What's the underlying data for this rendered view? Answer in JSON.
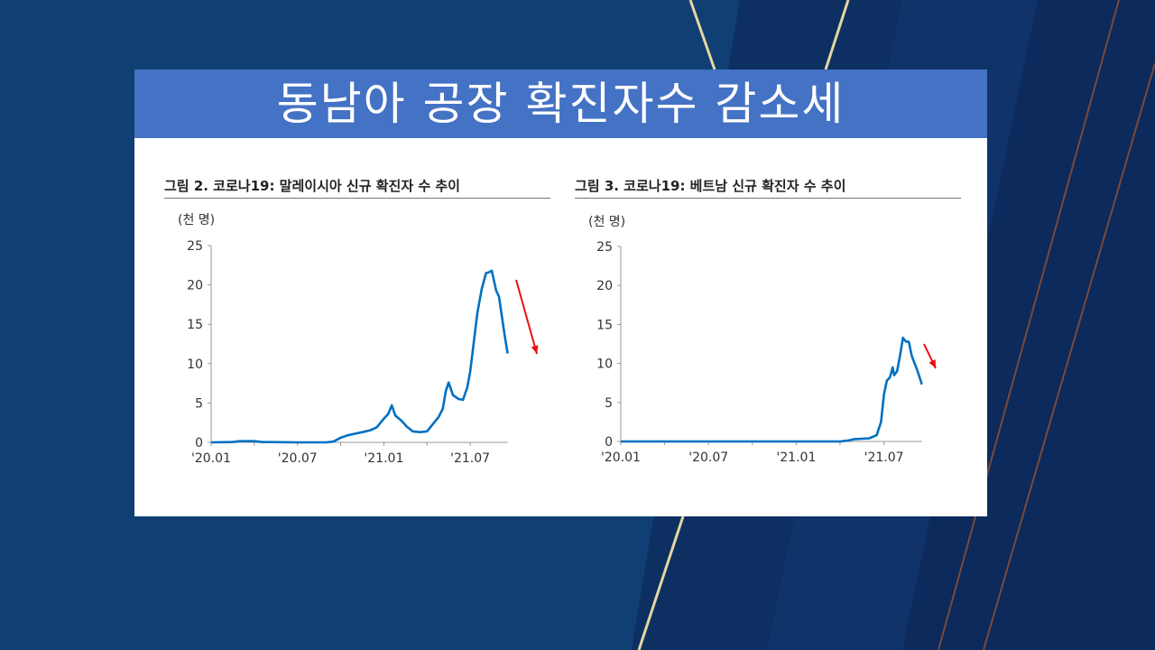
{
  "slide": {
    "title": "동남아 공장 확진자수 감소세",
    "colors": {
      "background": "#0f3f73",
      "banner": "#4472c4",
      "line": "#0070c0",
      "arrow": "#e8100f",
      "gold": "#e6d6a0"
    }
  },
  "chart_data": [
    {
      "type": "line",
      "title": "그림 2. 코로나19: 말레이시아 신규 확진자 수 추이",
      "ylabel": "(천 명)",
      "xlabel": "",
      "ylim": [
        0,
        25
      ],
      "yticks": [
        "0",
        "5",
        "10",
        "15",
        "20",
        "25"
      ],
      "xlim_months_since_2020_01": [
        0,
        20.6
      ],
      "xticks": [
        "'20.01",
        "'20.07",
        "'21.01",
        "'21.07"
      ],
      "annotation": "red downward arrow indicating decline",
      "series": [
        {
          "name": "말레이시아 신규 확진자",
          "x": [
            0,
            1.5,
            2,
            3,
            3.5,
            6,
            8,
            8.5,
            9,
            9.5,
            10,
            10.5,
            11,
            11.5,
            12,
            12.3,
            12.55,
            12.8,
            13.2,
            13.6,
            14,
            14.5,
            15,
            15.4,
            15.8,
            16.1,
            16.3,
            16.5,
            16.8,
            17.2,
            17.5,
            17.8,
            18,
            18.2,
            18.5,
            18.8,
            19.1,
            19.3,
            19.5,
            19.8,
            20,
            20.2,
            20.4,
            20.6
          ],
          "values": [
            0,
            0.05,
            0.15,
            0.15,
            0.05,
            0,
            0,
            0.1,
            0.6,
            0.9,
            1.1,
            1.3,
            1.5,
            1.9,
            3.0,
            3.6,
            4.7,
            3.4,
            2.8,
            2.0,
            1.4,
            1.3,
            1.4,
            2.3,
            3.2,
            4.3,
            6.5,
            7.6,
            6.0,
            5.5,
            5.4,
            7.0,
            9.0,
            12.0,
            16.5,
            19.5,
            21.5,
            21.6,
            21.8,
            19.3,
            18.5,
            16.0,
            13.5,
            11.3
          ]
        }
      ]
    },
    {
      "type": "line",
      "title": "그림 3. 코로나19: 베트남 신규 확진자 수 추이",
      "ylabel": "(천 명)",
      "xlabel": "",
      "ylim": [
        0,
        25
      ],
      "yticks": [
        "0",
        "5",
        "10",
        "15",
        "20",
        "25"
      ],
      "xlim_months_since_2020_01": [
        0,
        20.6
      ],
      "xticks": [
        "'20.01",
        "'20.07",
        "'21.01",
        "'21.07"
      ],
      "annotation": "red downward arrow indicating decline",
      "series": [
        {
          "name": "베트남 신규 확진자",
          "x": [
            0,
            6,
            12,
            15,
            15.5,
            16,
            17,
            17.5,
            17.8,
            18,
            18.2,
            18.4,
            18.6,
            18.7,
            18.9,
            19.1,
            19.3,
            19.5,
            19.7,
            19.9,
            20.1,
            20.3,
            20.6
          ],
          "values": [
            0,
            0,
            0,
            0,
            0.1,
            0.3,
            0.4,
            0.8,
            2.5,
            6.0,
            7.8,
            8.2,
            9.5,
            8.5,
            9.0,
            11.0,
            13.3,
            12.8,
            12.8,
            11.0,
            10.0,
            9.0,
            7.3
          ]
        }
      ]
    }
  ]
}
